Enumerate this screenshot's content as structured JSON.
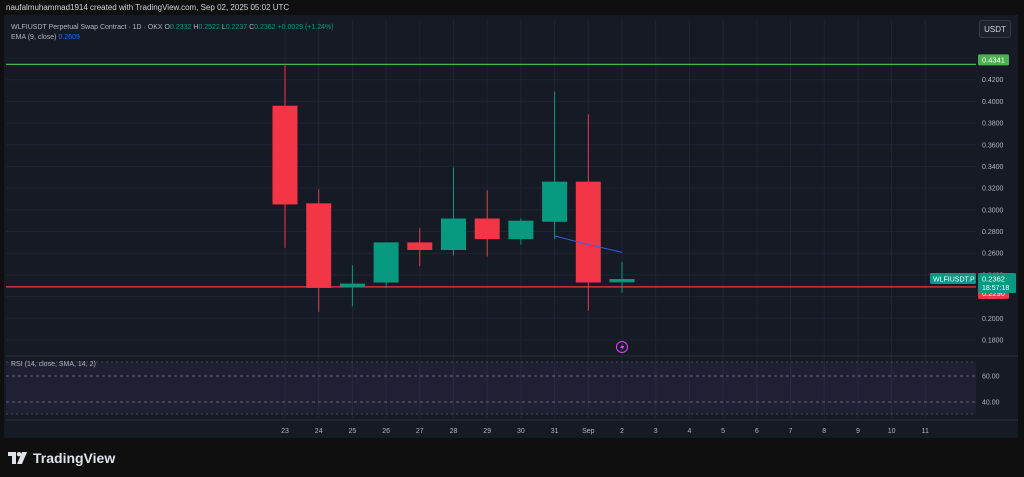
{
  "header": {
    "credit": "naufalmuhammad1914 created with TradingView.com, Sep 02, 2025 05:02 UTC"
  },
  "legend": {
    "symbol": "WLFIUSDT Perpetual Swap Contract · 1D · OKX",
    "open_label": "O",
    "open": "0.2332",
    "high_label": "H",
    "high": "0.2522",
    "low_label": "L",
    "low": "0.2237",
    "close_label": "C",
    "close": "0.2362",
    "change": "+0.0029 (+1.24%)",
    "ema_label": "EMA (9, close)",
    "ema_value": "0.2609",
    "rsi_label": "RSI (14, close, SMA, 14, 2)"
  },
  "controls": {
    "unit": "USDT"
  },
  "brand": {
    "name": "TradingView"
  },
  "colors": {
    "up": "#089981",
    "down": "#f23645",
    "ema": "#2962ff",
    "hline_top": "#4caf50",
    "hline_bottom": "#f23645",
    "rsi_band": "#7e57c2"
  },
  "chart_data": {
    "type": "candlestick",
    "xlabel": "",
    "ylabel": "",
    "categories": [
      "23",
      "24",
      "25",
      "26",
      "27",
      "28",
      "29",
      "30",
      "31",
      "Sep",
      "2"
    ],
    "future_ticks": [
      "3",
      "4",
      "5",
      "6",
      "7",
      "8",
      "9",
      "10",
      "11"
    ],
    "candles": [
      {
        "date": "23",
        "open": 0.396,
        "high": 0.434,
        "low": 0.265,
        "close": 0.305
      },
      {
        "date": "24",
        "open": 0.306,
        "high": 0.319,
        "low": 0.206,
        "close": 0.228
      },
      {
        "date": "25",
        "open": 0.229,
        "high": 0.249,
        "low": 0.211,
        "close": 0.232
      },
      {
        "date": "26",
        "open": 0.233,
        "high": 0.27,
        "low": 0.228,
        "close": 0.27
      },
      {
        "date": "27",
        "open": 0.27,
        "high": 0.283,
        "low": 0.248,
        "close": 0.263
      },
      {
        "date": "28",
        "open": 0.263,
        "high": 0.339,
        "low": 0.258,
        "close": 0.292
      },
      {
        "date": "29",
        "open": 0.292,
        "high": 0.318,
        "low": 0.257,
        "close": 0.273
      },
      {
        "date": "30",
        "open": 0.273,
        "high": 0.292,
        "low": 0.268,
        "close": 0.29
      },
      {
        "date": "31",
        "open": 0.289,
        "high": 0.409,
        "low": 0.273,
        "close": 0.326
      },
      {
        "date": "Sep",
        "open": 0.326,
        "high": 0.388,
        "low": 0.207,
        "close": 0.233
      },
      {
        "date": "2",
        "open": 0.2332,
        "high": 0.2522,
        "low": 0.2237,
        "close": 0.2362
      }
    ],
    "ema": {
      "name": "EMA (9, close)",
      "points": [
        {
          "date": "31",
          "value": 0.276
        },
        {
          "date": "Sep",
          "value": 0.268
        },
        {
          "date": "2",
          "value": 0.2609
        }
      ]
    },
    "horizontal_lines": [
      {
        "value": 0.4341,
        "label": "0.4341"
      },
      {
        "value": 0.229,
        "label": "0.2290"
      }
    ],
    "last_price": {
      "symbol": "WLFIUSDT.P",
      "value": "0.2362",
      "countdown": "18:57:18"
    },
    "yticks": [
      "0.1800",
      "0.2000",
      "0.2200",
      "0.2400",
      "0.2600",
      "0.2800",
      "0.3000",
      "0.3200",
      "0.3400",
      "0.3600",
      "0.3800",
      "0.4000",
      "0.4200",
      "0.4400"
    ],
    "ylim": [
      0.172,
      0.452
    ],
    "grid": true,
    "rsi": {
      "levels": [
        "60.00",
        "40.00"
      ]
    }
  }
}
